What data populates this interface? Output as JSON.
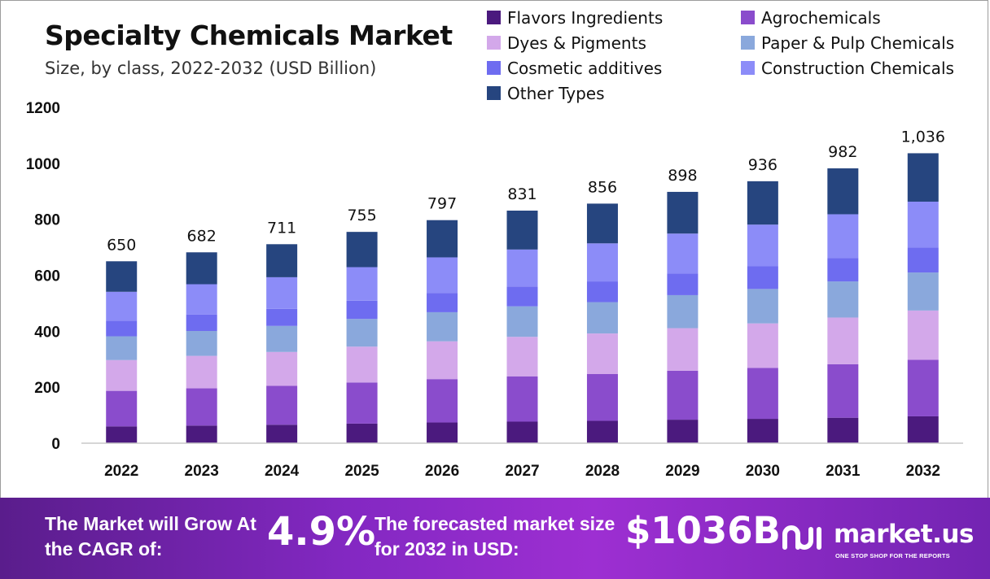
{
  "header": {
    "title": "Specialty Chemicals Market",
    "subtitle": "Size, by class, 2022-2032 (USD Billion)"
  },
  "legend": [
    {
      "name": "Flavors Ingredients",
      "color": "#4b1a7e"
    },
    {
      "name": "Agrochemicals",
      "color": "#8a4ccc"
    },
    {
      "name": "Dyes & Pigments",
      "color": "#d3a8ea"
    },
    {
      "name": "Paper & Pulp Chemicals",
      "color": "#8aa8dc"
    },
    {
      "name": "Cosmetic additives",
      "color": "#6e6cf0"
    },
    {
      "name": "Construction Chemicals",
      "color": "#8c8cf8"
    },
    {
      "name": "Other Types",
      "color": "#26457f"
    }
  ],
  "chart_data": {
    "type": "bar",
    "stacked": true,
    "categories": [
      "2022",
      "2023",
      "2024",
      "2025",
      "2026",
      "2027",
      "2028",
      "2029",
      "2030",
      "2031",
      "2032"
    ],
    "series": [
      {
        "name": "Flavors Ingredients",
        "color": "#4b1a7e",
        "values": [
          60,
          63,
          66,
          70,
          74,
          77,
          80,
          84,
          87,
          91,
          96
        ]
      },
      {
        "name": "Agrochemicals",
        "color": "#8a4ccc",
        "values": [
          127,
          133,
          139,
          147,
          155,
          162,
          167,
          175,
          182,
          191,
          202
        ]
      },
      {
        "name": "Dyes & Pigments",
        "color": "#d3a8ea",
        "values": [
          110,
          116,
          121,
          128,
          135,
          141,
          145,
          152,
          159,
          167,
          176
        ]
      },
      {
        "name": "Paper & Pulp Chemicals",
        "color": "#8aa8dc",
        "values": [
          85,
          89,
          93,
          99,
          104,
          109,
          112,
          118,
          123,
          129,
          136
        ]
      },
      {
        "name": "Cosmetic additives",
        "color": "#6e6cf0",
        "values": [
          56,
          59,
          61,
          65,
          69,
          71,
          74,
          77,
          81,
          84,
          89
        ]
      },
      {
        "name": "Construction Chemicals",
        "color": "#8c8cf8",
        "values": [
          103,
          108,
          113,
          120,
          127,
          132,
          136,
          143,
          149,
          156,
          164
        ]
      },
      {
        "name": "Other Types",
        "color": "#26457f",
        "values": [
          109,
          114,
          118,
          126,
          133,
          139,
          142,
          149,
          155,
          164,
          173
        ]
      }
    ],
    "totals": [
      650,
      682,
      711,
      755,
      797,
      831,
      856,
      898,
      936,
      982,
      1036
    ],
    "total_labels": [
      "650",
      "682",
      "711",
      "755",
      "797",
      "831",
      "856",
      "898",
      "936",
      "982",
      "1,036"
    ],
    "ylim": [
      0,
      1200
    ],
    "yticks": [
      0,
      200,
      400,
      600,
      800,
      1000,
      1200
    ],
    "grid": false,
    "legend_position": "top-right"
  },
  "footer": {
    "cagr_label": "The Market will Grow At the CAGR of:",
    "cagr_value": "4.9%",
    "size_label": "The forecasted market size for 2032 in USD:",
    "size_value": "$1036B",
    "logo_text": "market.us",
    "logo_tagline": "ONE STOP SHOP FOR THE REPORTS",
    "logo_icon": "market-us-logo-icon"
  }
}
